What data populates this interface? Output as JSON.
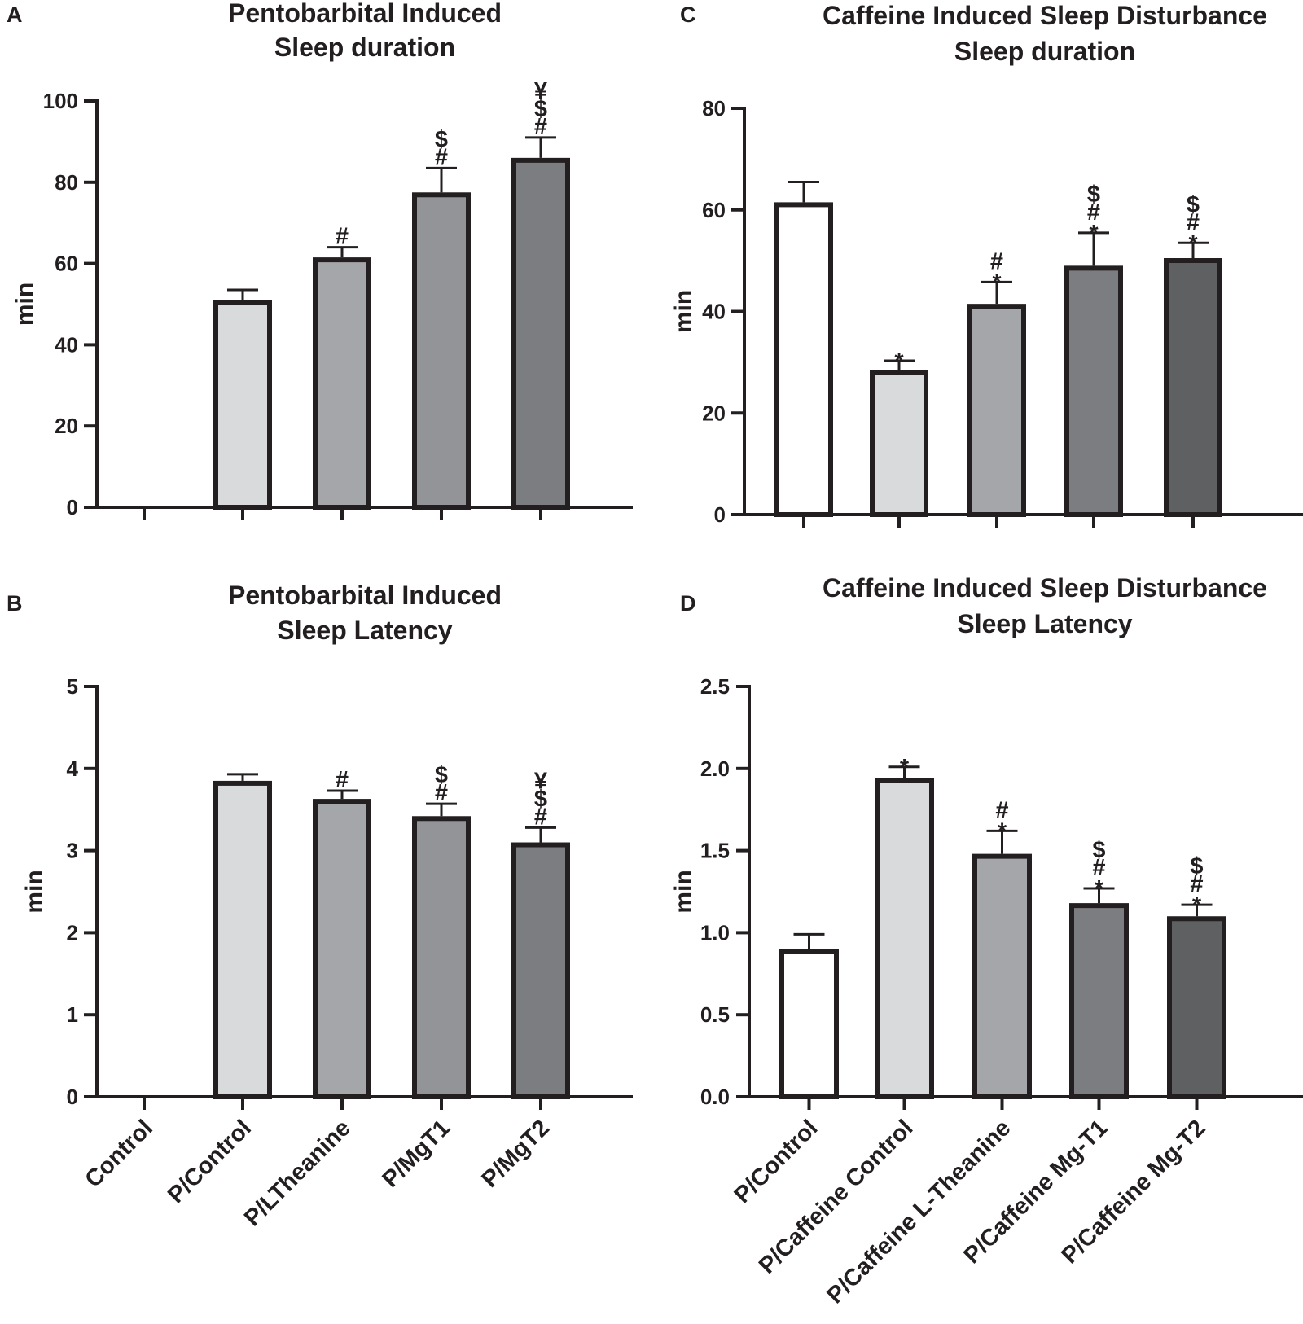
{
  "colors": {
    "ink": "#231f20",
    "control": "#ffffff",
    "gray1": "#d9dadb",
    "gray2": "#a5a6a9",
    "gray3": "#939497",
    "gray4": "#7c7d80",
    "gray5": "#5f6062"
  },
  "chart_data": [
    {
      "panel": "A",
      "type": "bar",
      "title": [
        "Pentobarbital Induced",
        "Sleep duration"
      ],
      "ylabel": "min",
      "xlabel": "",
      "ylim": [
        0,
        100
      ],
      "yticks": [
        0,
        20,
        40,
        60,
        80,
        100
      ],
      "categories": [
        "Control",
        "P/Control",
        "P/LTheanine",
        "P/MgT1",
        "P/MgT2"
      ],
      "show_category_labels": false,
      "values": [
        0,
        51,
        61.5,
        77.5,
        86
      ],
      "errors": [
        0,
        2.5,
        2.5,
        6,
        5
      ],
      "significance": [
        [],
        [],
        [
          "#"
        ],
        [
          "#",
          "$"
        ],
        [
          "#",
          "$",
          "¥"
        ]
      ],
      "fills": [
        "#ffffff",
        "#d9dadb",
        "#a5a6a9",
        "#939497",
        "#7c7d80"
      ]
    },
    {
      "panel": "B",
      "type": "bar",
      "title": [
        "Pentobarbital Induced",
        "Sleep Latency"
      ],
      "ylabel": "min",
      "xlabel": "",
      "ylim": [
        0,
        5
      ],
      "yticks": [
        0,
        1,
        2,
        3,
        4,
        5
      ],
      "categories": [
        "Control",
        "P/Control",
        "P/LTheanine",
        "P/MgT1",
        "P/MgT2"
      ],
      "show_category_labels": true,
      "values": [
        0,
        3.85,
        3.63,
        3.42,
        3.1
      ],
      "errors": [
        0,
        0.08,
        0.1,
        0.15,
        0.18
      ],
      "significance": [
        [],
        [],
        [
          "#"
        ],
        [
          "#",
          "$"
        ],
        [
          "#",
          "$",
          "¥"
        ]
      ],
      "fills": [
        "#ffffff",
        "#d9dadb",
        "#a5a6a9",
        "#939497",
        "#7c7d80"
      ]
    },
    {
      "panel": "C",
      "type": "bar",
      "title": [
        "Caffeine Induced Sleep Disturbance",
        "Sleep duration"
      ],
      "ylabel": "min",
      "xlabel": "",
      "ylim": [
        0,
        80
      ],
      "yticks": [
        0,
        20,
        40,
        60,
        80
      ],
      "categories": [
        "P/Control",
        "P/Caffeine Control",
        "P/Caffeine L-Theanine",
        "P/Caffeine Mg-T1",
        "P/Caffeine Mg-T2"
      ],
      "show_category_labels": false,
      "values": [
        61.5,
        28.5,
        41.5,
        49,
        50.5
      ],
      "errors": [
        4,
        1.8,
        4.3,
        6.5,
        3
      ],
      "significance": [
        [],
        [
          "*"
        ],
        [
          "*",
          "#"
        ],
        [
          "*",
          "#",
          "$"
        ],
        [
          "*",
          "#",
          "$"
        ]
      ],
      "fills": [
        "#ffffff",
        "#d9dadb",
        "#a5a6a9",
        "#7c7d80",
        "#5f6062"
      ]
    },
    {
      "panel": "D",
      "type": "bar",
      "title": [
        "Caffeine Induced Sleep Disturbance",
        "Sleep Latency"
      ],
      "ylabel": "min",
      "xlabel": "",
      "ylim": [
        0,
        2.5
      ],
      "yticks": [
        "0.0",
        "0.5",
        "1.0",
        "1.5",
        "2.0",
        "2.5"
      ],
      "categories": [
        "P/Control",
        "P/Caffeine Control",
        "P/Caffeine L-Theanine",
        "P/Caffeine Mg-T1",
        "P/Caffeine Mg-T2"
      ],
      "show_category_labels": true,
      "values": [
        0.9,
        1.94,
        1.48,
        1.18,
        1.1
      ],
      "errors": [
        0.09,
        0.07,
        0.14,
        0.09,
        0.07
      ],
      "significance": [
        [],
        [
          "*"
        ],
        [
          "*",
          "#"
        ],
        [
          "*",
          "#",
          "$"
        ],
        [
          "*",
          "#",
          "$"
        ]
      ],
      "fills": [
        "#ffffff",
        "#d9dadb",
        "#a5a6a9",
        "#7c7d80",
        "#5f6062"
      ]
    }
  ]
}
